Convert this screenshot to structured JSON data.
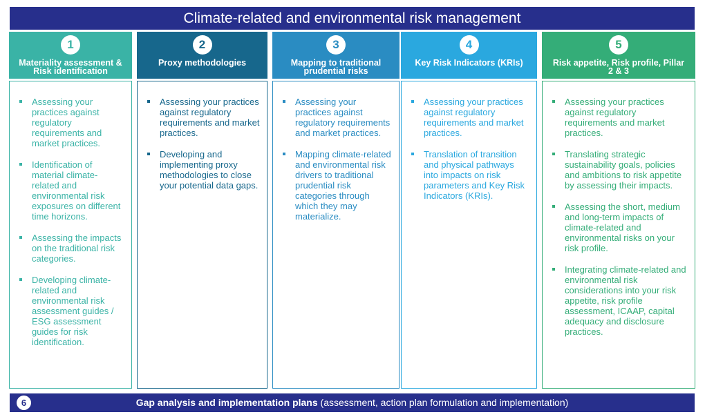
{
  "title": "Climate-related and environmental risk management",
  "columns": [
    {
      "number": 1,
      "heading": "Materiality assessment & Risk identification",
      "color": "#3ab3a6",
      "items": [
        "Assessing your practices against regulatory requirements and market practices.",
        "Identification of material climate-related and environmental risk exposures on different time horizons.",
        "Assessing the impacts on the traditional risk categories.",
        "Developing climate-related and environmental risk assessment guides / ESG assessment guides for risk identification."
      ]
    },
    {
      "number": 2,
      "heading": "Proxy methodologies",
      "color": "#17678c",
      "items": [
        "Assessing your practices against regulatory requirements and market practices.",
        "Developing and implementing proxy methodologies to close your potential data gaps."
      ]
    },
    {
      "number": 3,
      "heading": "Mapping to traditional prudential risks",
      "color": "#2a8cc2",
      "items": [
        "Assessing your practices against regulatory requirements and market practices.",
        "Mapping climate-related and environmental risk drivers to traditional prudential risk categories through which they may materialize."
      ]
    },
    {
      "number": 4,
      "heading": "Key Risk Indicators (KRIs)",
      "color": "#2aa8df",
      "items": [
        "Assessing your practices against regulatory requirements and market practices.",
        "Translation of transition and physical pathways into impacts on risk parameters and Key Risk Indicators (KRIs)."
      ]
    },
    {
      "number": 5,
      "heading": "Risk appetite, Risk profile, Pillar 2 & 3",
      "color": "#34ad78",
      "items": [
        "Assessing your practices against regulatory requirements and market practices.",
        "Translating strategic sustainability goals, policies and ambitions to risk appetite by assessing their impacts.",
        "Assessing the short, medium and long-term impacts of climate-related and environmental risks on your risk profile.",
        "Integrating climate-related and environmental risk considerations into your risk appetite, risk profile assessment, ICAAP, capital adequacy and disclosure practices."
      ]
    }
  ],
  "footer": {
    "number": 6,
    "bold": "Gap analysis and implementation plans",
    "rest": "(assessment, action plan formulation and implementation)"
  }
}
